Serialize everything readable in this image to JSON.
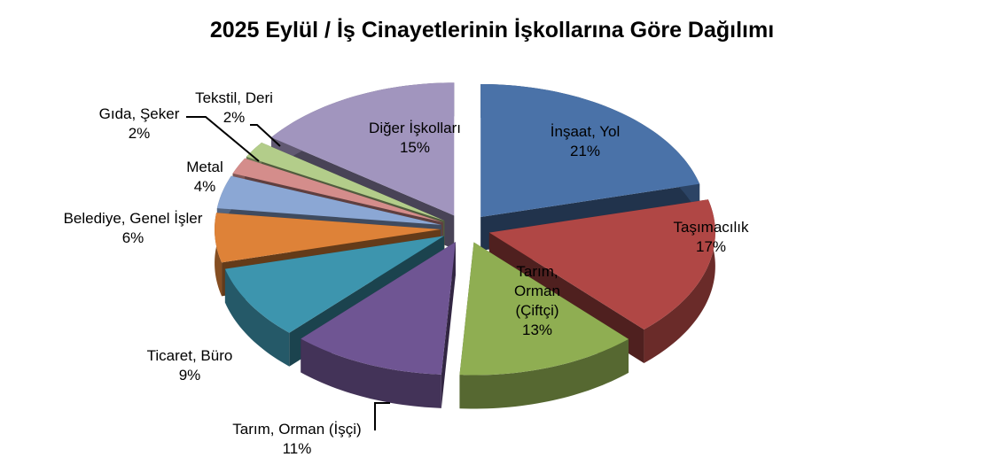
{
  "chart_data": {
    "type": "pie",
    "style": "3d-exploded",
    "title": "2025 Eylül / İş Cinayetlerinin İşkollarına Göre Dağılımı",
    "legend": "none",
    "slices": [
      {
        "label": "İnşaat, Yol",
        "value": 21,
        "pct_label": "21%",
        "color": "#4a72a8"
      },
      {
        "label": "Taşımacılık",
        "value": 17,
        "pct_label": "17%",
        "color": "#b04745"
      },
      {
        "label": "Tarım, Orman (Çiftçi)",
        "value": 13,
        "pct_label": "13%",
        "color": "#8fae52"
      },
      {
        "label": "Tarım, Orman (İşçi)",
        "value": 11,
        "pct_label": "11%",
        "color": "#6f5593"
      },
      {
        "label": "Ticaret, Büro",
        "value": 9,
        "pct_label": "9%",
        "color": "#3d95ae"
      },
      {
        "label": "Belediye, Genel İşler",
        "value": 6,
        "pct_label": "6%",
        "color": "#de8238"
      },
      {
        "label": "Metal",
        "value": 4,
        "pct_label": "4%",
        "color": "#8ba7d4"
      },
      {
        "label": "Gıda, Şeker",
        "value": 2,
        "pct_label": "2%",
        "color": "#d48d8b"
      },
      {
        "label": "Tekstil, Deri",
        "value": 2,
        "pct_label": "2%",
        "color": "#b3cd8a"
      },
      {
        "label": "Diğer İşkolları",
        "value": 15,
        "pct_label": "15%",
        "color": "#a195be"
      }
    ]
  }
}
